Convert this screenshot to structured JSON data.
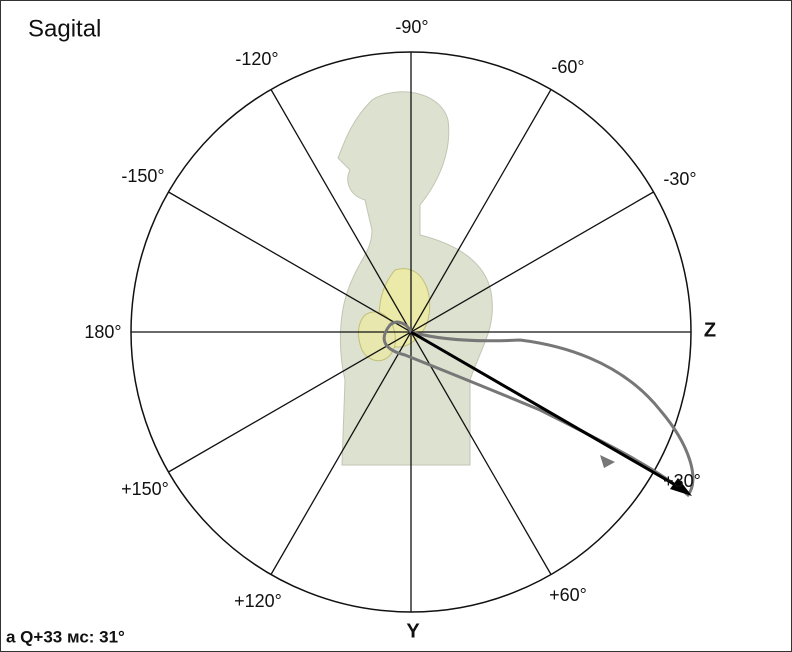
{
  "title": "Sagital",
  "angle_labels": {
    "m90": "-90°",
    "m60": "-60°",
    "m30": "-30°",
    "p30": "+30°",
    "p60": "+60°",
    "p120": "+120°",
    "p150": "+150°",
    "a180": "180°",
    "m150": "-150°",
    "m120": "-120°"
  },
  "axis_labels": {
    "z": "Z",
    "y": "Y"
  },
  "caption": "a Q+33 мс: 31°"
}
